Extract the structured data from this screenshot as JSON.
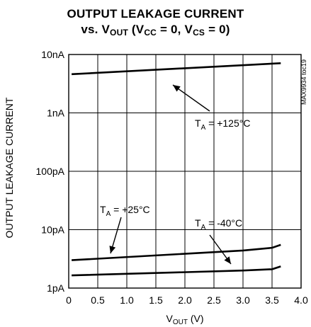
{
  "chart_data": {
    "type": "line",
    "title_line1": "OUTPUT LEAKAGE CURRENT",
    "title_line2_prefix": "vs. V",
    "title_line2_sub1": "OUT",
    "title_line2_mid1": " (V",
    "title_line2_sub2": "CC",
    "title_line2_mid2": " = 0, V",
    "title_line2_sub3": "CS",
    "title_line2_suffix": " = 0)",
    "xlabel_main": "V",
    "xlabel_sub": "OUT",
    "xlabel_unit": " (V)",
    "ylabel": "OUTPUT  LEAKAGE CURRENT",
    "xlim": [
      0,
      4.0
    ],
    "ylim": [
      1e-12,
      1e-08
    ],
    "yscale": "log",
    "grid": true,
    "x_ticks": [
      0,
      0.5,
      1.0,
      1.5,
      2.0,
      2.5,
      3.0,
      3.5,
      4.0
    ],
    "x_tick_labels": [
      "0",
      "0.5",
      "1.0",
      "1.5",
      "2.0",
      "2.5",
      "3.0",
      "3.5",
      "4.0"
    ],
    "y_ticks": [
      1e-12,
      1e-11,
      1e-10,
      1e-09,
      1e-08
    ],
    "y_tick_labels": [
      "1pA",
      "10pA",
      "100pA",
      "1nA",
      "10nA"
    ],
    "watermark": "MAX9934 toc19",
    "series": [
      {
        "name_main": "T",
        "name_sub": "A",
        "name_rest": " = +125°C",
        "x": [
          0.05,
          3.65
        ],
        "y": [
          4.6e-09,
          7.1e-09
        ]
      },
      {
        "name_main": "T",
        "name_sub": "A",
        "name_rest": " = +25°C",
        "x": [
          0.05,
          3.0,
          3.5,
          3.65
        ],
        "y": [
          3e-12,
          4.4e-12,
          4.9e-12,
          5.5e-12
        ]
      },
      {
        "name_main": "T",
        "name_sub": "A",
        "name_rest": " = -40°C",
        "x": [
          0.05,
          3.0,
          3.5,
          3.65
        ],
        "y": [
          1.65e-12,
          2e-12,
          2.1e-12,
          2.35e-12
        ]
      }
    ]
  }
}
